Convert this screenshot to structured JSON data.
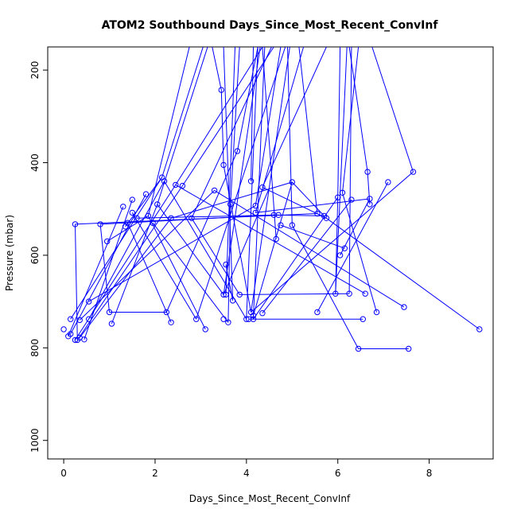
{
  "chart_data": {
    "type": "scatter",
    "title": "ATOM2 Southbound Days_Since_Most_Recent_ConvInf",
    "xlabel": "Days_Since_Most_Recent_ConvInf",
    "ylabel": "Pressure (mbar)",
    "xlim": [
      -0.35,
      9.4
    ],
    "ylim": [
      1040,
      150
    ],
    "y_reversed": true,
    "x_ticks": [
      0,
      2,
      4,
      6,
      8
    ],
    "y_ticks": [
      200,
      400,
      600,
      800,
      1000
    ],
    "color": "#0000ff",
    "series": [
      {
        "points": [
          [
            0.0,
            760
          ],
          [
            0.1,
            775
          ],
          [
            0.15,
            770
          ],
          [
            0.25,
            783
          ],
          [
            0.3,
            783
          ],
          [
            0.35,
            778
          ],
          [
            0.45,
            782
          ],
          [
            0.15,
            738
          ],
          [
            0.25,
            533
          ],
          [
            0.35,
            740
          ],
          [
            0.55,
            700
          ],
          [
            0.55,
            738
          ],
          [
            0.8,
            533
          ],
          [
            0.95,
            570
          ],
          [
            1.0,
            723
          ],
          [
            1.05,
            748
          ],
          [
            1.3,
            495
          ],
          [
            1.35,
            538
          ],
          [
            1.4,
            530
          ],
          [
            1.5,
            508
          ],
          [
            1.5,
            480
          ],
          [
            1.6,
            520
          ],
          [
            1.8,
            468
          ],
          [
            1.85,
            515
          ],
          [
            1.95,
            530
          ],
          [
            2.05,
            490
          ],
          [
            2.15,
            432
          ],
          [
            2.2,
            440
          ],
          [
            2.25,
            723
          ],
          [
            2.35,
            520
          ],
          [
            2.35,
            745
          ],
          [
            2.45,
            448
          ],
          [
            2.6,
            450
          ],
          [
            2.8,
            520
          ],
          [
            2.9,
            738
          ],
          [
            3.1,
            760
          ],
          [
            3.3,
            460
          ],
          [
            3.45,
            243
          ],
          [
            3.5,
            405
          ],
          [
            3.5,
            685
          ],
          [
            3.5,
            738
          ],
          [
            3.55,
            620
          ],
          [
            3.55,
            685
          ],
          [
            3.6,
            745
          ],
          [
            3.65,
            490
          ],
          [
            3.7,
            698
          ],
          [
            3.8,
            375
          ],
          [
            3.85,
            685
          ],
          [
            4.0,
            738
          ],
          [
            4.05,
            738
          ],
          [
            4.1,
            723
          ],
          [
            4.1,
            440
          ],
          [
            4.15,
            738
          ],
          [
            4.15,
            730
          ],
          [
            4.2,
            493
          ],
          [
            4.2,
            508
          ],
          [
            4.35,
            453
          ],
          [
            4.35,
            725
          ],
          [
            4.6,
            513
          ],
          [
            4.65,
            565
          ],
          [
            4.7,
            513
          ],
          [
            4.75,
            535
          ],
          [
            5.0,
            442
          ],
          [
            5.0,
            535
          ],
          [
            5.55,
            510
          ],
          [
            5.55,
            723
          ],
          [
            5.7,
            515
          ],
          [
            5.75,
            520
          ],
          [
            5.95,
            683
          ],
          [
            6.0,
            475
          ],
          [
            6.05,
            600
          ],
          [
            6.1,
            465
          ],
          [
            6.15,
            585
          ],
          [
            6.25,
            683
          ],
          [
            6.3,
            480
          ],
          [
            6.45,
            802
          ],
          [
            6.55,
            738
          ],
          [
            6.6,
            683
          ],
          [
            6.65,
            420
          ],
          [
            6.7,
            478
          ],
          [
            6.7,
            490
          ],
          [
            6.85,
            723
          ],
          [
            7.1,
            442
          ],
          [
            7.45,
            712
          ],
          [
            7.55,
            802
          ],
          [
            7.65,
            420
          ],
          [
            9.1,
            760
          ]
        ],
        "segments": [
          [
            [
              0.15,
              738
            ],
            [
              2.15,
              432
            ]
          ],
          [
            [
              0.1,
              775
            ],
            [
              1.3,
              495
            ]
          ],
          [
            [
              0.15,
              770
            ],
            [
              1.8,
              468
            ]
          ],
          [
            [
              0.25,
              783
            ],
            [
              2.45,
              448
            ]
          ],
          [
            [
              0.3,
              783
            ],
            [
              2.6,
              450
            ]
          ],
          [
            [
              0.35,
              778
            ],
            [
              2.35,
              520
            ]
          ],
          [
            [
              0.45,
              782
            ],
            [
              1.5,
              480
            ]
          ],
          [
            [
              0.25,
              533
            ],
            [
              0.3,
              783
            ]
          ],
          [
            [
              0.35,
              740
            ],
            [
              3.3,
              460
            ]
          ],
          [
            [
              0.55,
              700
            ],
            [
              4.2,
              493
            ]
          ],
          [
            [
              0.55,
              738
            ],
            [
              2.2,
              440
            ]
          ],
          [
            [
              0.8,
              533
            ],
            [
              4.6,
              513
            ]
          ],
          [
            [
              0.8,
              533
            ],
            [
              1.0,
              723
            ]
          ],
          [
            [
              0.25,
              533
            ],
            [
              5.55,
              510
            ]
          ],
          [
            [
              0.95,
              570
            ],
            [
              1.85,
              515
            ]
          ],
          [
            [
              1.0,
              723
            ],
            [
              2.25,
              723
            ]
          ],
          [
            [
              1.05,
              748
            ],
            [
              2.05,
              490
            ]
          ],
          [
            [
              1.35,
              538
            ],
            [
              2.15,
              432
            ]
          ],
          [
            [
              1.4,
              530
            ],
            [
              2.35,
              745
            ]
          ],
          [
            [
              1.5,
              508
            ],
            [
              2.9,
              738
            ]
          ],
          [
            [
              1.6,
              520
            ],
            [
              4.7,
              513
            ]
          ],
          [
            [
              1.85,
              515
            ],
            [
              3.1,
              760
            ]
          ],
          [
            [
              1.95,
              530
            ],
            [
              3.6,
              745
            ]
          ],
          [
            [
              2.05,
              490
            ],
            [
              3.5,
              685
            ]
          ],
          [
            [
              2.2,
              440
            ],
            [
              4.0,
              738
            ]
          ],
          [
            [
              2.25,
              723
            ],
            [
              3.8,
              375
            ]
          ],
          [
            [
              2.35,
              520
            ],
            [
              5.0,
              442
            ]
          ],
          [
            [
              2.45,
              448
            ],
            [
              6.6,
              683
            ]
          ],
          [
            [
              2.8,
              520
            ],
            [
              3.85,
              685
            ]
          ],
          [
            [
              3.3,
              460
            ],
            [
              7.45,
              712
            ]
          ],
          [
            [
              3.5,
              405
            ],
            [
              3.45,
              243
            ]
          ],
          [
            [
              3.5,
              405
            ],
            [
              4.1,
              723
            ]
          ],
          [
            [
              3.55,
              620
            ],
            [
              3.7,
              698
            ]
          ],
          [
            [
              3.65,
              490
            ],
            [
              3.6,
              745
            ]
          ],
          [
            [
              3.85,
              685
            ],
            [
              6.25,
              683
            ]
          ],
          [
            [
              4.05,
              738
            ],
            [
              6.55,
              738
            ]
          ],
          [
            [
              4.15,
              730
            ],
            [
              5.0,
              442
            ]
          ],
          [
            [
              4.15,
              738
            ],
            [
              6.0,
              475
            ]
          ],
          [
            [
              4.2,
              508
            ],
            [
              6.7,
              478
            ]
          ],
          [
            [
              4.35,
              453
            ],
            [
              5.75,
              520
            ]
          ],
          [
            [
              4.35,
              725
            ],
            [
              6.3,
              480
            ]
          ],
          [
            [
              4.6,
              513
            ],
            [
              5.7,
              515
            ]
          ],
          [
            [
              4.75,
              535
            ],
            [
              6.15,
              585
            ]
          ],
          [
            [
              5.0,
              442
            ],
            [
              5.7,
              515
            ]
          ],
          [
            [
              5.0,
              535
            ],
            [
              6.45,
              802
            ]
          ],
          [
            [
              5.55,
              723
            ],
            [
              7.1,
              442
            ]
          ],
          [
            [
              5.75,
              520
            ],
            [
              9.1,
              760
            ]
          ],
          [
            [
              6.0,
              475
            ],
            [
              5.95,
              683
            ]
          ],
          [
            [
              6.05,
              600
            ],
            [
              6.7,
              478
            ]
          ],
          [
            [
              6.1,
              465
            ],
            [
              6.85,
              723
            ]
          ],
          [
            [
              6.45,
              802
            ],
            [
              7.55,
              802
            ]
          ],
          [
            [
              6.65,
              420
            ],
            [
              6.7,
              490
            ]
          ],
          [
            [
              4.1,
              723
            ],
            [
              7.65,
              420
            ]
          ],
          [
            [
              3.5,
              685
            ],
            [
              4.5,
              455
            ]
          ],
          [
            [
              1.85,
              515
            ],
            [
              2.75,
              150
            ]
          ],
          [
            [
              2.05,
              490
            ],
            [
              3.15,
              150
            ]
          ],
          [
            [
              2.15,
              432
            ],
            [
              3.05,
              150
            ]
          ],
          [
            [
              2.45,
              448
            ],
            [
              4.35,
              150
            ]
          ],
          [
            [
              2.6,
              450
            ],
            [
              4.6,
              150
            ]
          ],
          [
            [
              2.8,
              520
            ],
            [
              4.55,
              150
            ]
          ],
          [
            [
              3.5,
              685
            ],
            [
              4.3,
              150
            ]
          ],
          [
            [
              3.55,
              685
            ],
            [
              3.75,
              150
            ]
          ],
          [
            [
              3.65,
              490
            ],
            [
              3.85,
              150
            ]
          ],
          [
            [
              4.1,
              440
            ],
            [
              4.15,
              150
            ]
          ],
          [
            [
              3.8,
              375
            ],
            [
              4.25,
              150
            ]
          ],
          [
            [
              4.1,
              723
            ],
            [
              4.95,
              150
            ]
          ],
          [
            [
              4.2,
              508
            ],
            [
              5.25,
              150
            ]
          ],
          [
            [
              4.35,
              453
            ],
            [
              5.75,
              150
            ]
          ],
          [
            [
              4.65,
              565
            ],
            [
              4.35,
              150
            ]
          ],
          [
            [
              4.15,
              738
            ],
            [
              4.4,
              150
            ]
          ],
          [
            [
              4.2,
              493
            ],
            [
              4.75,
              150
            ]
          ],
          [
            [
              5.0,
              535
            ],
            [
              4.9,
              150
            ]
          ],
          [
            [
              5.95,
              683
            ],
            [
              6.2,
              150
            ]
          ],
          [
            [
              6.0,
              475
            ],
            [
              6.05,
              150
            ]
          ],
          [
            [
              6.25,
              683
            ],
            [
              6.3,
              150
            ]
          ],
          [
            [
              6.65,
              420
            ],
            [
              6.25,
              150
            ]
          ],
          [
            [
              7.65,
              420
            ],
            [
              6.75,
              150
            ]
          ],
          [
            [
              6.1,
              465
            ],
            [
              6.45,
              150
            ]
          ],
          [
            [
              5.55,
              510
            ],
            [
              5.15,
              150
            ]
          ],
          [
            [
              3.7,
              698
            ],
            [
              3.5,
              150
            ]
          ],
          [
            [
              3.45,
              243
            ],
            [
              3.25,
              150
            ]
          ],
          [
            [
              4.0,
              738
            ],
            [
              4.25,
              150
            ]
          ],
          [
            [
              2.9,
              738
            ],
            [
              4.85,
              150
            ]
          ]
        ]
      }
    ]
  }
}
